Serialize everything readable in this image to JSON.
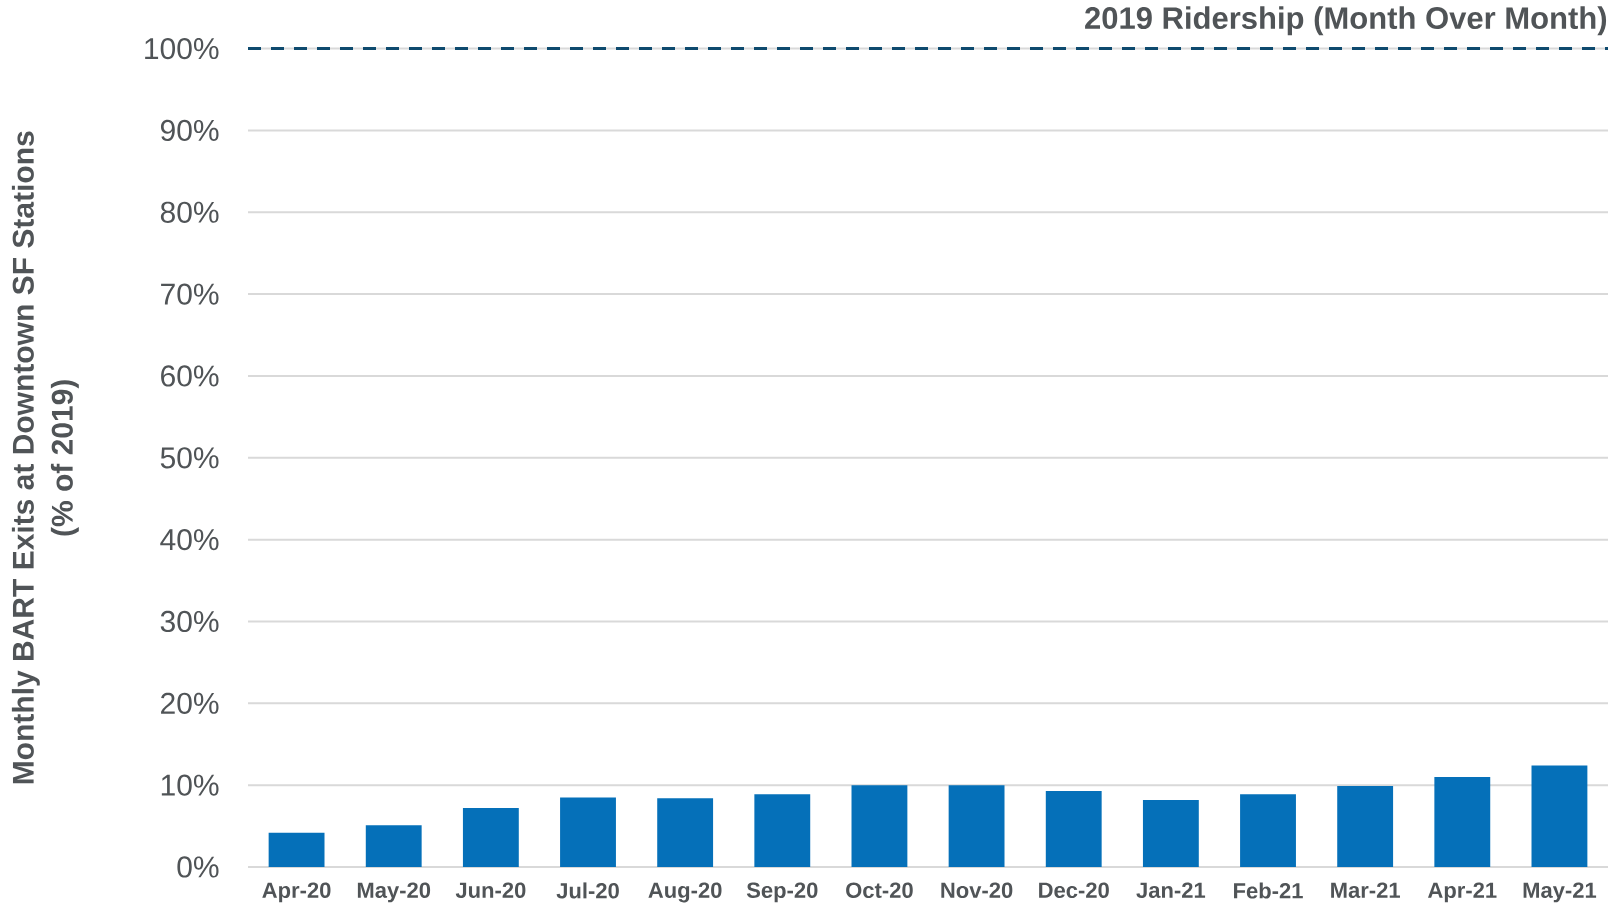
{
  "chart_data": {
    "type": "bar",
    "ylabel": "Monthly BART Exits at Downtown SF Stations (% of 2019)",
    "categories": [
      "Apr-20",
      "May-20",
      "Jun-20",
      "Jul-20",
      "Aug-20",
      "Sep-20",
      "Oct-20",
      "Nov-20",
      "Dec-20",
      "Jan-21",
      "Feb-21",
      "Mar-21",
      "Apr-21",
      "May-21"
    ],
    "values": [
      4.2,
      5.1,
      7.2,
      8.5,
      8.4,
      8.9,
      10.0,
      10.0,
      9.3,
      8.2,
      8.9,
      9.9,
      11.0,
      12.4
    ],
    "color": "#0570b9",
    "ylim": [
      0,
      100
    ],
    "yticks": [
      {
        "value": 0,
        "label": "0%"
      },
      {
        "value": 10,
        "label": "10%"
      },
      {
        "value": 20,
        "label": "20%"
      },
      {
        "value": 30,
        "label": "30%"
      },
      {
        "value": 40,
        "label": "40%"
      },
      {
        "value": 50,
        "label": "50%"
      },
      {
        "value": 60,
        "label": "60%"
      },
      {
        "value": 70,
        "label": "70%"
      },
      {
        "value": 80,
        "label": "80%"
      },
      {
        "value": 90,
        "label": "90%"
      },
      {
        "value": 100,
        "label": "100%"
      }
    ],
    "grid": "y",
    "ref_lines": [
      {
        "axis": "y",
        "value": 100,
        "label": "2019 Ridership (Month Over Month)",
        "color": "#0e4a6e",
        "line_style": "dashed"
      }
    ]
  }
}
